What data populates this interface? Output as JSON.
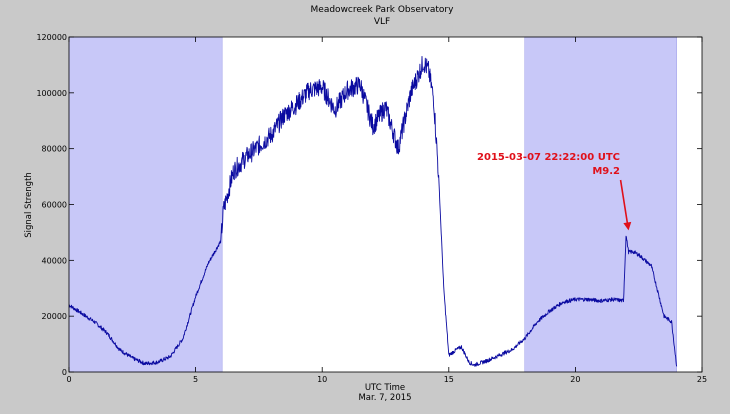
{
  "chart_data": {
    "type": "line",
    "title": "Meadowcreek Park Observatory",
    "subtitle": "VLF",
    "xlabel": "UTC Time",
    "xlabel2": "Mar. 7, 2015",
    "ylabel": "Signal Strength",
    "xlim": [
      0,
      25
    ],
    "ylim": [
      0,
      120000
    ],
    "xticks": [
      0,
      5,
      10,
      15,
      20,
      25
    ],
    "xtick_labels": [
      "0",
      "5",
      "10",
      "15",
      "20",
      "25"
    ],
    "yticks": [
      0,
      20000,
      40000,
      60000,
      80000,
      100000,
      120000
    ],
    "ytick_labels": [
      "0",
      "20000",
      "40000",
      "60000",
      "80000",
      "100000",
      "120000"
    ],
    "grid": false,
    "night_shading": [
      {
        "start": 0,
        "end": 6.05,
        "color": "#c8c8f8"
      },
      {
        "start": 18.0,
        "end": 24.0,
        "color": "#c8c8f8"
      }
    ],
    "series": [
      {
        "color": "#0a0aa0",
        "x": [
          0,
          0.5,
          1,
          1.5,
          2,
          2.5,
          3,
          3.5,
          4,
          4.5,
          5,
          5.5,
          6,
          6.1,
          6.5,
          7,
          7.5,
          8,
          8.5,
          9,
          9.5,
          10,
          10.5,
          11,
          11.5,
          12,
          12.5,
          13,
          13.5,
          14,
          14.2,
          14.4,
          14.6,
          14.8,
          15,
          15.3,
          15.5,
          15.8,
          16,
          16.5,
          17,
          17.5,
          18,
          18.5,
          19,
          19.5,
          20,
          20.5,
          21,
          21.5,
          21.9,
          22.0,
          22.1,
          22.3,
          22.5,
          23,
          23.5,
          23.8,
          24.0
        ],
        "values": [
          24000,
          21000,
          18000,
          14000,
          8000,
          5000,
          3000,
          3500,
          5500,
          12000,
          27000,
          39000,
          47000,
          58000,
          72000,
          77000,
          81000,
          85000,
          92000,
          96000,
          101000,
          102000,
          94000,
          101000,
          103000,
          88000,
          95000,
          80000,
          100000,
          111000,
          108000,
          98000,
          70000,
          30000,
          6000,
          8000,
          9000,
          3500,
          2500,
          4000,
          6000,
          8000,
          12000,
          18000,
          22000,
          25000,
          26000,
          26000,
          25500,
          26000,
          25500,
          49000,
          43000,
          43000,
          42000,
          38000,
          20000,
          18000,
          2000
        ]
      }
    ],
    "annotation": {
      "lines": [
        "2015-03-07 22:22:00 UTC",
        "M9.2"
      ],
      "color": "#e0101a",
      "point_x": 22.1,
      "point_y": 50000
    }
  }
}
